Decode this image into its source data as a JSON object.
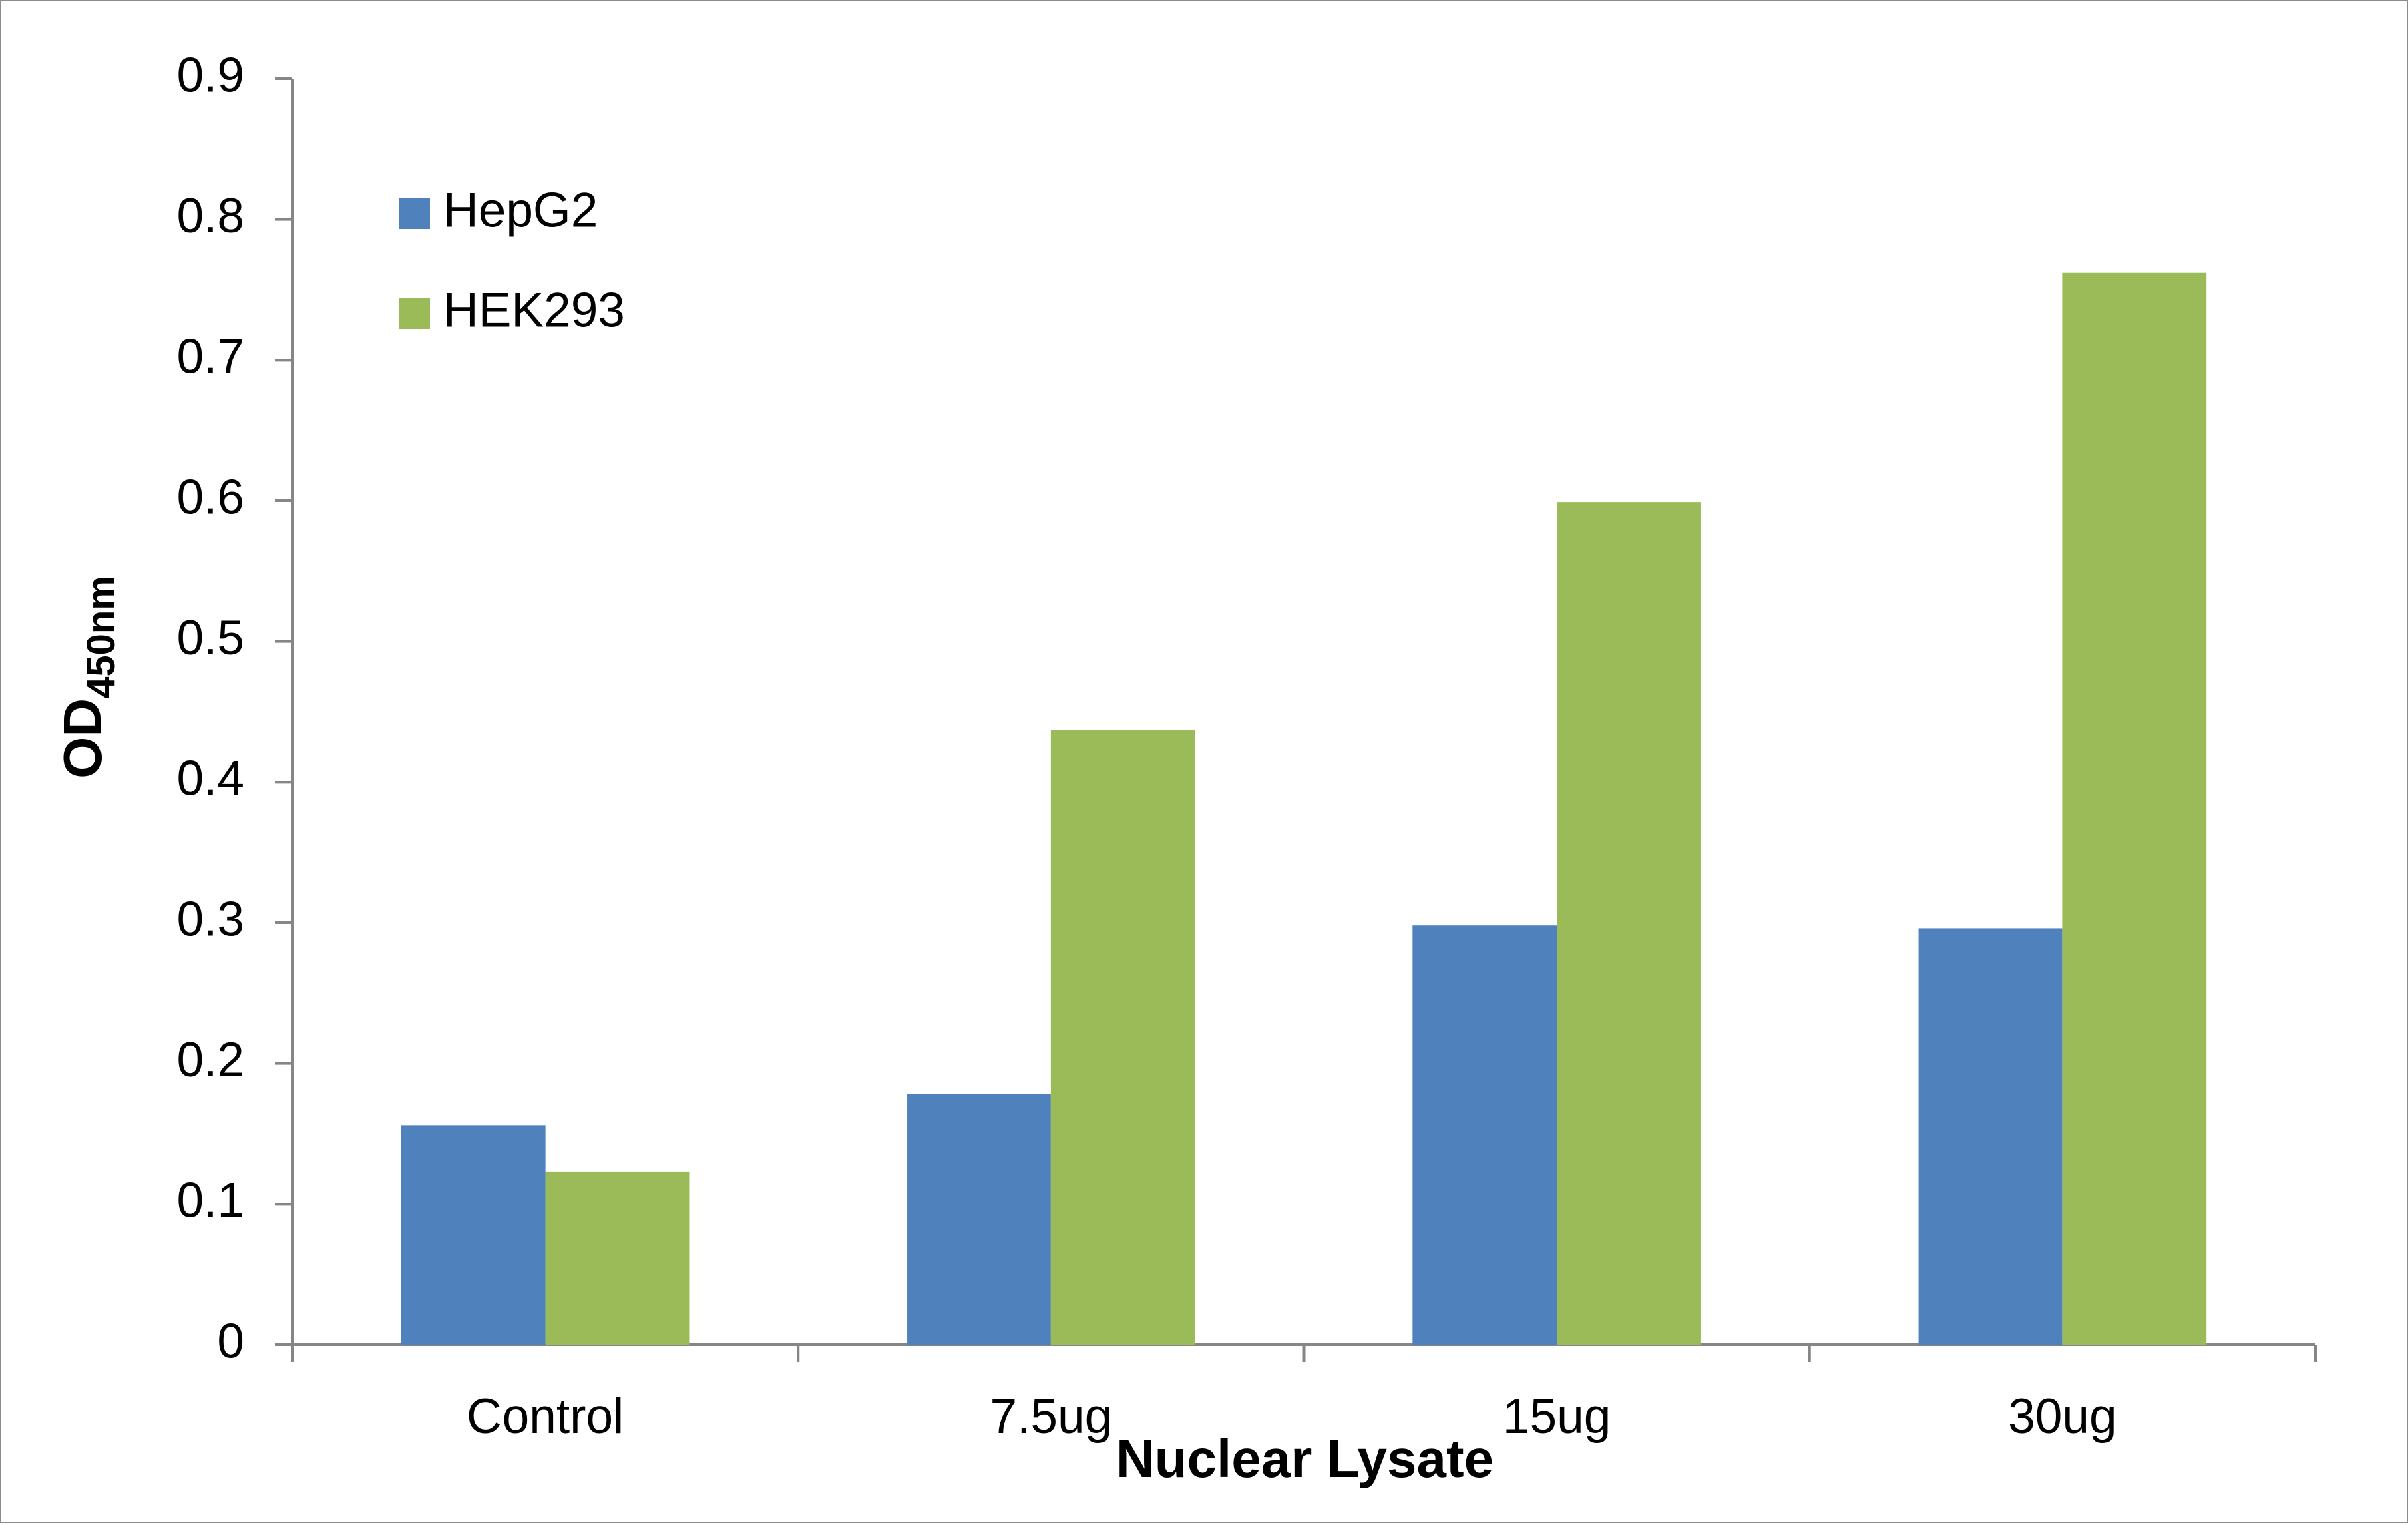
{
  "chart_data": {
    "type": "bar",
    "categories": [
      "Control",
      "7.5ug",
      "15ug",
      "30ug"
    ],
    "series": [
      {
        "name": "HepG2",
        "color": "#4f81bd",
        "values": [
          0.156,
          0.178,
          0.298,
          0.296
        ]
      },
      {
        "name": "HEK293",
        "color": "#9bbb59",
        "values": [
          0.123,
          0.437,
          0.599,
          0.762
        ]
      }
    ],
    "xlabel": "Nuclear Lysate",
    "ylabel": {
      "main": "OD",
      "subscript": "450nm"
    },
    "ylim": [
      0,
      0.9
    ],
    "yticks": [
      "0",
      "0.1",
      "0.2",
      "0.3",
      "0.4",
      "0.5",
      "0.6",
      "0.7",
      "0.8",
      "0.9"
    ],
    "grid": false,
    "legend_position": "top-left"
  }
}
